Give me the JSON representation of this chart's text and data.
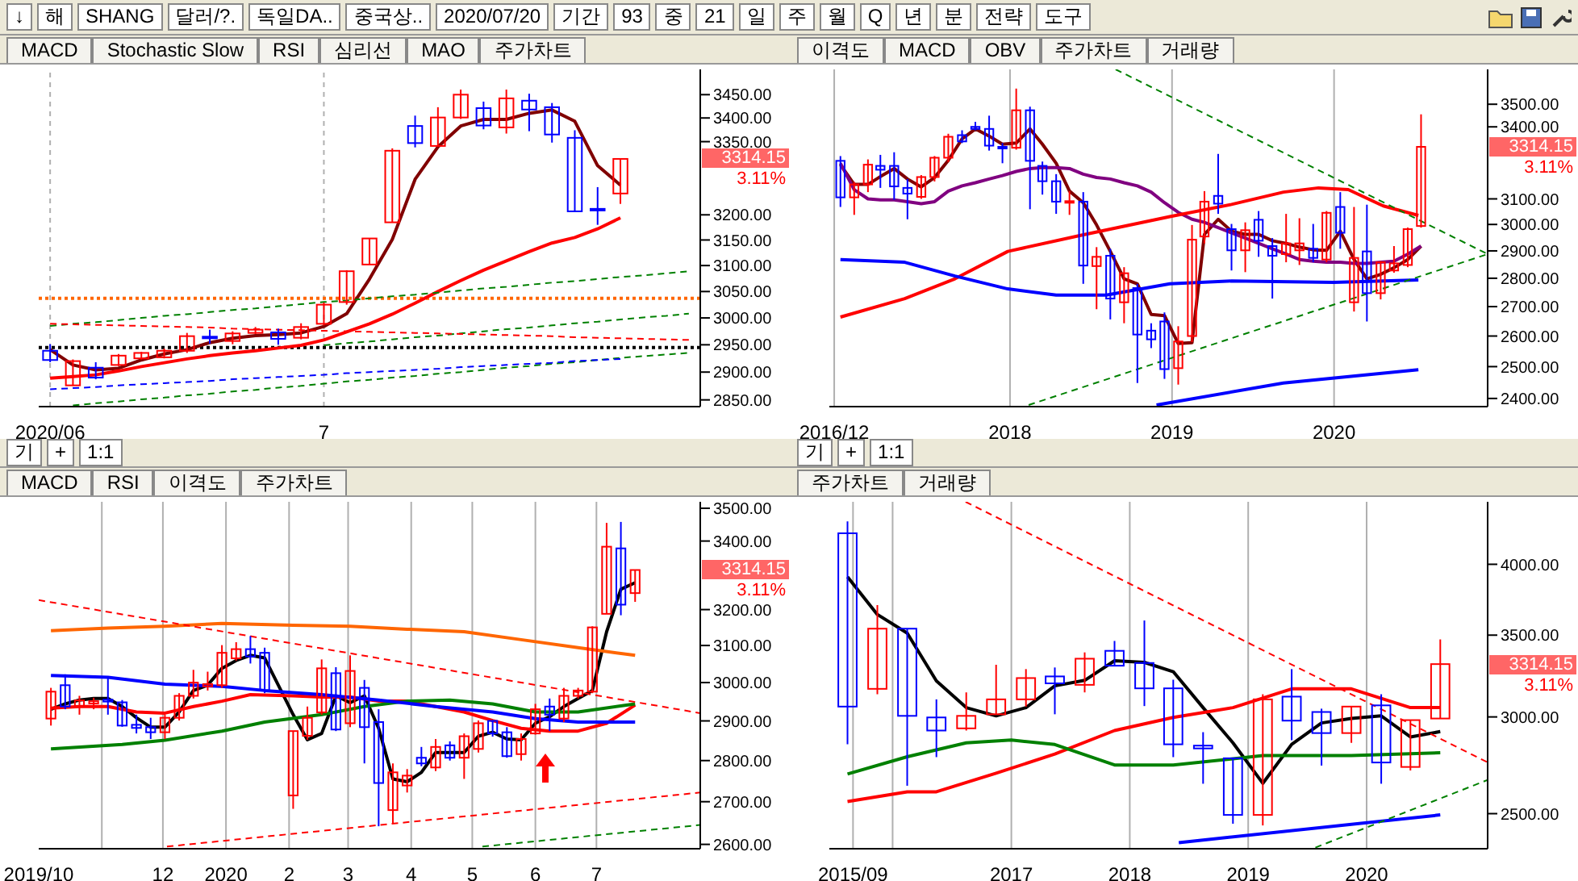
{
  "chart_data": [
    {
      "type": "other",
      "annotations": [
        "↓",
        "해",
        "SHANG",
        "달러/?.",
        "독일DA..",
        "중국상..",
        "2020/07/20",
        "기간",
        "93",
        "중",
        "21",
        "일",
        "주",
        "월",
        "Q",
        "년",
        "분",
        "전략",
        "도구"
      ]
    },
    {
      "type": "other",
      "annotations": [
        "MACD",
        "Stochastic Slow",
        "RSI",
        "심리선",
        "MAO",
        "주가차트"
      ]
    },
    {
      "type": "other",
      "annotations": [
        "이격도",
        "MACD",
        "OBV",
        "주가차트",
        "거래량"
      ]
    },
    {
      "type": "candlestick",
      "log": true,
      "grid": "x",
      "categories": [
        "2020/06",
        null,
        null,
        null,
        null,
        null,
        null,
        null,
        null,
        null,
        null,
        null,
        "7",
        null,
        null,
        null,
        null,
        null,
        null,
        null,
        null,
        null,
        null,
        null,
        null,
        null,
        null,
        null,
        null
      ],
      "ohlc": [
        [
          2939,
          2951,
          2918,
          2922
        ],
        [
          2876,
          2923,
          2875,
          2920
        ],
        [
          2908,
          2918,
          2887,
          2890
        ],
        [
          2913,
          2933,
          2911,
          2930
        ],
        [
          2925,
          2937,
          2923,
          2935
        ],
        [
          2927,
          2943,
          2925,
          2939
        ],
        [
          2939,
          2972,
          2935,
          2966
        ],
        [
          2965,
          2978,
          2952,
          2963
        ],
        [
          2957,
          2975,
          2951,
          2971
        ],
        [
          2972,
          2983,
          2970,
          2978
        ],
        [
          2973,
          2980,
          2950,
          2961
        ],
        [
          2963,
          2990,
          2960,
          2983
        ],
        [
          2989,
          3029,
          2986,
          3025
        ],
        [
          3030,
          3091,
          3025,
          3089
        ],
        [
          3102,
          3153,
          3102,
          3153
        ],
        [
          3185,
          3336,
          3185,
          3331
        ],
        [
          3383,
          3405,
          3338,
          3347
        ],
        [
          3341,
          3423,
          3341,
          3401
        ],
        [
          3401,
          3461,
          3398,
          3450
        ],
        [
          3421,
          3435,
          3376,
          3384
        ],
        [
          3380,
          3461,
          3367,
          3442
        ],
        [
          3437,
          3452,
          3372,
          3418
        ],
        [
          3423,
          3432,
          3348,
          3365
        ],
        [
          3358,
          3374,
          3207,
          3207
        ],
        [
          3212,
          3256,
          3180,
          3210
        ],
        [
          3243,
          3314,
          3222,
          3314
        ],
        null,
        null,
        null
      ],
      "colors": [
        "#0000ff",
        "#ff0000",
        "#0000ff",
        "#ff0000",
        "#ff0000",
        "#ff0000",
        "#ff0000",
        "#0000ff",
        "#ff0000",
        "#ff0000",
        "#0000ff",
        "#ff0000",
        "#ff0000",
        "#ff0000",
        "#ff0000",
        "#ff0000",
        "#0000ff",
        "#ff0000",
        "#ff0000",
        "#0000ff",
        "#ff0000",
        "#0000ff",
        "#0000ff",
        "#0000ff",
        "#0000ff",
        "#ff0000",
        null,
        null,
        null
      ],
      "ylim": [
        2838,
        3505
      ],
      "yticks": [
        {
          "value": 2850,
          "label": "2850.00"
        },
        {
          "value": 2900,
          "label": "2900.00"
        },
        {
          "value": 2950,
          "label": "2950.00"
        },
        {
          "value": 3000,
          "label": "3000.00"
        },
        {
          "value": 3050,
          "label": "3050.00"
        },
        {
          "value": 3100,
          "label": "3100.00"
        },
        {
          "value": 3150,
          "label": "3150.00"
        },
        {
          "value": 3200,
          "label": "3200.00"
        },
        {
          "value": 3350,
          "label": "3350.00"
        },
        {
          "value": 3400,
          "label": "3400.00"
        },
        {
          "value": 3450,
          "label": "3450.00"
        }
      ],
      "ref_lines": [
        {
          "axis": "y",
          "value": 3037,
          "color": "#ff6600",
          "line_style": "dotted"
        },
        {
          "axis": "y",
          "value": 2945,
          "color": "#000000",
          "line_style": "dotted"
        }
      ],
      "series": [
        {
          "type": "line",
          "color": "#800000",
          "values": [
            2941,
            2913,
            2904,
            2907,
            2922,
            2933,
            2941,
            2954,
            2962,
            2967,
            2969,
            2972,
            2984,
            3008,
            3074,
            3151,
            3272,
            3339,
            3383,
            3397,
            3397,
            3410,
            3417,
            3393,
            3300,
            3260,
            null,
            null,
            null
          ]
        },
        {
          "type": "line",
          "color": "#ff0000",
          "values": [
            2889,
            2892,
            2895,
            2902,
            2910,
            2917,
            2924,
            2930,
            2935,
            2939,
            2944,
            2949,
            2959,
            2974,
            2989,
            3007,
            3028,
            3050,
            3071,
            3091,
            3109,
            3127,
            3144,
            3155,
            3172,
            3194,
            null,
            null,
            null
          ]
        },
        {
          "type": "line",
          "color": "#008000",
          "line_style": "dashed",
          "values": [
            2985,
            2989,
            2992,
            2996,
            3000,
            3004,
            3007,
            3011,
            3015,
            3018,
            3022,
            3026,
            3030,
            3033,
            3037,
            3041,
            3044,
            3048,
            3052,
            3056,
            3059,
            3063,
            3067,
            3070,
            3074,
            3078,
            3081,
            3085,
            3089
          ]
        },
        {
          "type": "line",
          "color": "#008000",
          "line_style": "dashed",
          "values": [
            null,
            2840,
            2844,
            2847,
            2851,
            2854,
            2858,
            2861,
            2865,
            2868,
            2872,
            2875,
            2879,
            2883,
            2886,
            2890,
            2893,
            2897,
            2900,
            2904,
            2908,
            2911,
            2915,
            2918,
            2922,
            2926,
            2929,
            2932,
            2935
          ]
        },
        {
          "type": "line",
          "color": "#008000",
          "line_style": "dashed",
          "values": [
            null,
            null,
            null,
            null,
            null,
            null,
            null,
            null,
            null,
            null,
            null,
            null,
            2949,
            2953,
            2956,
            2960,
            2964,
            2967,
            2971,
            2975,
            2979,
            2982,
            2986,
            2990,
            2993,
            2997,
            3001,
            3004,
            3008
          ]
        },
        {
          "type": "line",
          "color": "#ff0000",
          "line_style": "dashed",
          "values": [
            2989,
            2988,
            2987,
            2986,
            2985,
            2984,
            2983,
            2982,
            2980,
            2979,
            2978,
            2977,
            2976,
            2975,
            2974,
            2973,
            2972,
            2971,
            2970,
            2969,
            2968,
            2967,
            2966,
            2964,
            2963,
            2962,
            2961,
            2960,
            2959
          ]
        },
        {
          "type": "line",
          "color": "#0000ff",
          "line_style": "dashed",
          "values": [
            2869,
            2871,
            2873,
            2876,
            2878,
            2880,
            2882,
            2884,
            2887,
            2889,
            2891,
            2893,
            2895,
            2898,
            2900,
            2902,
            2904,
            2906,
            2909,
            2911,
            2913,
            2915,
            2917,
            2920,
            2922,
            2924,
            null,
            null,
            null
          ]
        }
      ],
      "annotations": [
        "3314.15",
        "3.11%"
      ]
    },
    {
      "type": "candlestick",
      "log": true,
      "grid": "x",
      "x": [
        "2016-12-15",
        "2017-01-15",
        "2017-02-15",
        "2017-03-15",
        "2017-04-15",
        "2017-05-15",
        "2017-06-15",
        "2017-07-15",
        "2017-08-15",
        "2017-09-15",
        "2017-10-15",
        "2017-11-15",
        "2017-12-15",
        "2018-01-15",
        "2018-02-15",
        "2018-03-15",
        "2018-04-15",
        "2018-05-15",
        "2018-06-15",
        "2018-07-15",
        "2018-08-15",
        "2018-09-15",
        "2018-10-15",
        "2018-11-15",
        "2018-12-15",
        "2019-01-15",
        "2019-02-15",
        "2019-03-15",
        "2019-04-15",
        "2019-05-15",
        "2019-06-15",
        "2019-07-15",
        "2019-08-15",
        "2019-09-15",
        "2019-10-15",
        "2019-11-15",
        "2019-12-15",
        "2020-01-15",
        "2020-02-15",
        "2020-03-15",
        "2020-04-15",
        "2020-05-15",
        "2020-06-15",
        "2020-07-15"
      ],
      "ohlc": [
        [
          3255,
          3275,
          3068,
          3106
        ],
        [
          3106,
          3168,
          3037,
          3158
        ],
        [
          3158,
          3261,
          3127,
          3239
        ],
        [
          3234,
          3280,
          3144,
          3218
        ],
        [
          3234,
          3291,
          3096,
          3150
        ],
        [
          3144,
          3180,
          3020,
          3121
        ],
        [
          3108,
          3196,
          3100,
          3188
        ],
        [
          3188,
          3275,
          3170,
          3268
        ],
        [
          3268,
          3370,
          3250,
          3357
        ],
        [
          3364,
          3385,
          3330,
          3337
        ],
        [
          3400,
          3422,
          3385,
          3391
        ],
        [
          3391,
          3449,
          3298,
          3319
        ],
        [
          3314,
          3330,
          3245,
          3307
        ],
        [
          3310,
          3571,
          3302,
          3473
        ],
        [
          3473,
          3489,
          3059,
          3255
        ],
        [
          3234,
          3252,
          3117,
          3171
        ],
        [
          3171,
          3200,
          3041,
          3089
        ],
        [
          3087,
          3131,
          3037,
          3091
        ],
        [
          3089,
          3127,
          2780,
          2846
        ],
        [
          2844,
          2914,
          2691,
          2878
        ],
        [
          2882,
          2908,
          2656,
          2728
        ],
        [
          2715,
          2840,
          2643,
          2818
        ],
        [
          2765,
          2780,
          2448,
          2605
        ],
        [
          2618,
          2643,
          2560,
          2589
        ],
        [
          2649,
          2680,
          2461,
          2492
        ],
        [
          2495,
          2633,
          2443,
          2582
        ],
        [
          2600,
          2998,
          2580,
          2942
        ],
        [
          2954,
          3131,
          2928,
          3089
        ],
        [
          3112,
          3284,
          3041,
          3081
        ],
        [
          2982,
          3002,
          2828,
          2902
        ],
        [
          2902,
          3008,
          2822,
          2978
        ],
        [
          3018,
          3052,
          2878,
          2938
        ],
        [
          2918,
          2948,
          2728,
          2882
        ],
        [
          2888,
          3041,
          2858,
          2928
        ],
        [
          2902,
          3024,
          2848,
          2928
        ],
        [
          2908,
          3002,
          2858,
          2874
        ],
        [
          2868,
          3052,
          2858,
          3045
        ],
        [
          3068,
          3127,
          2908,
          2968
        ],
        [
          2715,
          3068,
          2683,
          2874
        ],
        [
          2898,
          3077,
          2649,
          2747
        ],
        [
          2747,
          2862,
          2725,
          2858
        ],
        [
          2828,
          2918,
          2820,
          2854
        ],
        [
          2848,
          2988,
          2840,
          2982
        ],
        [
          2994,
          3455,
          2988,
          3314
        ]
      ],
      "colors": [
        "#0000ff",
        "#ff0000",
        "#ff0000",
        "#0000ff",
        "#0000ff",
        "#0000ff",
        "#ff0000",
        "#ff0000",
        "#ff0000",
        "#0000ff",
        "#0000ff",
        "#0000ff",
        "#0000ff",
        "#ff0000",
        "#0000ff",
        "#0000ff",
        "#0000ff",
        "#ff0000",
        "#0000ff",
        "#ff0000",
        "#0000ff",
        "#ff0000",
        "#0000ff",
        "#0000ff",
        "#0000ff",
        "#ff0000",
        "#ff0000",
        "#ff0000",
        "#0000ff",
        "#0000ff",
        "#ff0000",
        "#0000ff",
        "#0000ff",
        "#ff0000",
        "#ff0000",
        "#0000ff",
        "#ff0000",
        "#0000ff",
        "#ff0000",
        "#0000ff",
        "#ff0000",
        "#ff0000",
        "#ff0000",
        "#ff0000"
      ],
      "xlim": [
        "2016-11-20",
        "2020-12-12"
      ],
      "xticks": [
        {
          "value": "2016-12-01",
          "label": "2016/12"
        },
        {
          "value": "2018-01-01",
          "label": "2018"
        },
        {
          "value": "2019-01-01",
          "label": "2019"
        },
        {
          "value": "2020-01-01",
          "label": "2020"
        }
      ],
      "ylim": [
        2375,
        3660
      ],
      "yticks": [
        {
          "value": 2400,
          "label": "2400.00"
        },
        {
          "value": 2500,
          "label": "2500.00"
        },
        {
          "value": 2600,
          "label": "2600.00"
        },
        {
          "value": 2700,
          "label": "2700.00"
        },
        {
          "value": 2800,
          "label": "2800.00"
        },
        {
          "value": 2900,
          "label": "2900.00"
        },
        {
          "value": 3000,
          "label": "3000.00"
        },
        {
          "value": 3100,
          "label": "3100.00"
        },
        {
          "value": 3400,
          "label": "3400.00"
        },
        {
          "value": 3500,
          "label": "3500.00"
        }
      ],
      "series": [
        {
          "type": "line",
          "color": "#800000",
          "values": [
            3239,
            3158,
            3158,
            3190,
            3223,
            3180,
            3148,
            3186,
            3257,
            3348,
            3391,
            3360,
            3325,
            3330,
            3391,
            3325,
            3245,
            3131,
            3085,
            2998,
            2898,
            2798,
            2780,
            2673,
            2669,
            2575,
            2578,
            2962,
            3020,
            2974,
            2962,
            2962,
            2938,
            2928,
            2914,
            2904,
            2902,
            2974,
            2868,
            2798,
            2814,
            2838,
            2868,
            2918
          ]
        },
        {
          "type": "line",
          "color": "#800080",
          "values": [
            3245,
            3137,
            3100,
            3096,
            3096,
            3089,
            3081,
            3089,
            3131,
            3152,
            3165,
            3180,
            3194,
            3211,
            3223,
            3227,
            3227,
            3223,
            3200,
            3186,
            3180,
            3165,
            3152,
            3127,
            3085,
            3047,
            3020,
            3008,
            2988,
            2968,
            2948,
            2928,
            2908,
            2888,
            2868,
            2862,
            2858,
            2858,
            2854,
            2854,
            2858,
            2862,
            2888,
            2918
          ]
        },
        {
          "type": "line",
          "color": "#ff0000",
          "x": [
            "2016-12-15",
            "2017-05-09",
            "2017-08-30",
            "2017-12-27",
            "2018-06-09",
            "2018-12-27",
            "2019-05-15",
            "2019-09-09",
            "2019-11-27",
            "2020-02-02",
            "2020-04-21",
            "2020-07-09"
          ],
          "values": [
            2664,
            2728,
            2798,
            2898,
            2958,
            3030,
            3078,
            3127,
            3144,
            3137,
            3072,
            3035
          ]
        },
        {
          "type": "line",
          "color": "#0000ff",
          "x": [
            "2016-12-15",
            "2017-05-09",
            "2017-08-30",
            "2017-12-27",
            "2018-04-15",
            "2018-08-06",
            "2018-12-27",
            "2019-05-15",
            "2019-12-31",
            "2020-07-09"
          ],
          "values": [
            2868,
            2858,
            2808,
            2762,
            2740,
            2740,
            2780,
            2790,
            2785,
            2794
          ]
        },
        {
          "type": "line",
          "color": "#0000ff",
          "x": [
            "2018-11-27",
            "2019-09-09",
            "2020-07-09"
          ],
          "values": [
            2380,
            2448,
            2490
          ]
        },
        {
          "type": "line",
          "color": "#008000",
          "line_style": "dashed",
          "x": [
            "2018-08-27",
            "2020-12-12"
          ],
          "values": [
            3660,
            2888
          ]
        },
        {
          "type": "line",
          "color": "#008000",
          "line_style": "dashed",
          "x": [
            "2018-02-12",
            "2020-12-12"
          ],
          "values": [
            2380,
            2888
          ]
        }
      ],
      "annotations": [
        "3314.15",
        "3.11%"
      ]
    },
    {
      "type": "other",
      "annotations": [
        "기",
        "+",
        "1:1"
      ]
    },
    {
      "type": "other",
      "annotations": [
        "기",
        "+",
        "1:1"
      ]
    },
    {
      "type": "other",
      "annotations": [
        "MACD",
        "RSI",
        "이격도",
        "주가차트"
      ]
    },
    {
      "type": "other",
      "annotations": [
        "주가차트",
        "거래량"
      ]
    },
    {
      "type": "candlestick",
      "log": true,
      "grid": "x",
      "x": [
        "2019-10-07",
        "2019-10-14",
        "2019-10-21",
        "2019-10-28",
        "2019-11-04",
        "2019-11-11",
        "2019-11-18",
        "2019-11-25",
        "2019-12-02",
        "2019-12-09",
        "2019-12-16",
        "2019-12-23",
        "2019-12-30",
        "2020-01-06",
        "2020-01-13",
        "2020-01-20",
        "2020-02-03",
        "2020-02-10",
        "2020-02-17",
        "2020-02-24",
        "2020-03-02",
        "2020-03-09",
        "2020-03-16",
        "2020-03-23",
        "2020-03-30",
        "2020-04-06",
        "2020-04-13",
        "2020-04-20",
        "2020-04-27",
        "2020-05-04",
        "2020-05-11",
        "2020-05-18",
        "2020-05-25",
        "2020-06-01",
        "2020-06-08",
        "2020-06-15",
        "2020-06-22",
        "2020-06-29",
        "2020-07-06",
        "2020-07-13",
        "2020-07-20"
      ],
      "ohlc": [
        [
          2906,
          2986,
          2888,
          2976
        ],
        [
          2993,
          3022,
          2930,
          2937
        ],
        [
          2937,
          2965,
          2916,
          2953
        ],
        [
          2945,
          2960,
          2930,
          2951
        ],
        [
          2955,
          3014,
          2916,
          2950
        ],
        [
          2948,
          2954,
          2885,
          2888
        ],
        [
          2890,
          2916,
          2868,
          2882
        ],
        [
          2884,
          2908,
          2854,
          2871
        ],
        [
          2871,
          2916,
          2854,
          2908
        ],
        [
          2908,
          2972,
          2901,
          2965
        ],
        [
          2965,
          3034,
          2958,
          3000
        ],
        [
          2990,
          3029,
          2979,
          2996
        ],
        [
          2993,
          3101,
          2986,
          3080
        ],
        [
          3065,
          3109,
          3059,
          3090
        ],
        [
          3090,
          3126,
          3051,
          3070
        ],
        [
          3080,
          3094,
          2972,
          2979
        ],
        [
          2715,
          2874,
          2683,
          2874
        ],
        [
          2862,
          2937,
          2852,
          2908
        ],
        [
          2922,
          3062,
          2916,
          3038
        ],
        [
          3025,
          3041,
          2874,
          2878
        ],
        [
          2894,
          3073,
          2884,
          3031
        ],
        [
          2986,
          3007,
          2793,
          2884
        ],
        [
          2897,
          2930,
          2642,
          2745
        ],
        [
          2680,
          2793,
          2648,
          2771
        ],
        [
          2739,
          2779,
          2722,
          2763
        ],
        [
          2807,
          2834,
          2786,
          2793
        ],
        [
          2783,
          2854,
          2774,
          2834
        ],
        [
          2838,
          2848,
          2800,
          2807
        ],
        [
          2807,
          2868,
          2755,
          2861
        ],
        [
          2829,
          2901,
          2820,
          2894
        ],
        [
          2900,
          2901,
          2860,
          2868
        ],
        [
          2871,
          2884,
          2807,
          2811
        ],
        [
          2816,
          2868,
          2800,
          2854
        ],
        [
          2868,
          2944,
          2865,
          2930
        ],
        [
          2937,
          2958,
          2874,
          2916
        ],
        [
          2906,
          2986,
          2897,
          2965
        ],
        [
          2965,
          2986,
          2958,
          2979
        ],
        [
          2976,
          3153,
          2972,
          3150
        ],
        [
          3188,
          3455,
          3188,
          3383
        ],
        [
          3378,
          3458,
          3184,
          3214
        ],
        [
          3247,
          3314,
          3222,
          3314
        ]
      ],
      "colors": [
        "#ff0000",
        "#0000ff",
        "#ff0000",
        "#ff0000",
        "#0000ff",
        "#0000ff",
        "#0000ff",
        "#0000ff",
        "#ff0000",
        "#ff0000",
        "#ff0000",
        "#ff0000",
        "#ff0000",
        "#ff0000",
        "#0000ff",
        "#0000ff",
        "#ff0000",
        "#ff0000",
        "#ff0000",
        "#0000ff",
        "#ff0000",
        "#0000ff",
        "#0000ff",
        "#ff0000",
        "#ff0000",
        "#0000ff",
        "#ff0000",
        "#0000ff",
        "#ff0000",
        "#ff0000",
        "#0000ff",
        "#0000ff",
        "#ff0000",
        "#ff0000",
        "#0000ff",
        "#ff0000",
        "#ff0000",
        "#ff0000",
        "#ff0000",
        "#0000ff",
        "#ff0000"
      ],
      "xlim": [
        "2019-10-01",
        "2020-08-21"
      ],
      "xticks": [
        {
          "value": "2019-10-01",
          "label": "2019/10"
        },
        {
          "value": "2019-11-01",
          "label": null
        },
        {
          "value": "2019-12-01",
          "label": "12"
        },
        {
          "value": "2020-01-01",
          "label": "2020"
        },
        {
          "value": "2020-02-01",
          "label": "2"
        },
        {
          "value": "2020-03-01",
          "label": "3"
        },
        {
          "value": "2020-04-01",
          "label": "4"
        },
        {
          "value": "2020-05-01",
          "label": "5"
        },
        {
          "value": "2020-06-01",
          "label": "6"
        },
        {
          "value": "2020-07-01",
          "label": "7"
        }
      ],
      "ylim": [
        2590,
        3520
      ],
      "yticks": [
        {
          "value": 2600,
          "label": "2600.00"
        },
        {
          "value": 2700,
          "label": "2700.00"
        },
        {
          "value": 2800,
          "label": "2800.00"
        },
        {
          "value": 2900,
          "label": "2900.00"
        },
        {
          "value": 3000,
          "label": "3000.00"
        },
        {
          "value": 3100,
          "label": "3100.00"
        },
        {
          "value": 3200,
          "label": "3200.00"
        },
        {
          "value": 3400,
          "label": "3400.00"
        },
        {
          "value": 3500,
          "label": "3500.00"
        }
      ],
      "series": [
        {
          "type": "line",
          "color": "#000000",
          "values": [
            2930,
            2944,
            2954,
            2958,
            2958,
            2937,
            2908,
            2884,
            2884,
            2923,
            2979,
            2993,
            3038,
            3059,
            3073,
            3066,
            2916,
            2852,
            2868,
            2965,
            2947,
            2965,
            2881,
            2755,
            2748,
            2771,
            2820,
            2820,
            2820,
            2861,
            2871,
            2854,
            2852,
            2894,
            2911,
            2937,
            2958,
            2979,
            3138,
            3258,
            3277
          ]
        },
        {
          "type": "line",
          "color": "#ff0000",
          "x": [
            "2019-10-07",
            "2019-10-21",
            "2019-11-04",
            "2019-11-18",
            "2019-12-02",
            "2019-12-16",
            "2019-12-30",
            "2020-01-13",
            "2020-02-03",
            "2020-02-17",
            "2020-03-02",
            "2020-03-16",
            "2020-03-30",
            "2020-04-13",
            "2020-04-27",
            "2020-05-11",
            "2020-05-25",
            "2020-06-08",
            "2020-06-22",
            "2020-07-06",
            "2020-07-20"
          ],
          "values": [
            2933,
            2937,
            2937,
            2923,
            2920,
            2937,
            2951,
            2968,
            2965,
            2962,
            2962,
            2951,
            2951,
            2937,
            2923,
            2901,
            2881,
            2874,
            2874,
            2894,
            2941
          ]
        },
        {
          "type": "line",
          "color": "#008000",
          "x": [
            "2019-10-07",
            "2019-11-11",
            "2019-12-02",
            "2019-12-30",
            "2020-01-20",
            "2020-02-17",
            "2020-03-09",
            "2020-03-30",
            "2020-04-20",
            "2020-05-11",
            "2020-06-01",
            "2020-06-22",
            "2020-07-20"
          ],
          "values": [
            2829,
            2840,
            2851,
            2874,
            2897,
            2916,
            2937,
            2951,
            2954,
            2944,
            2923,
            2923,
            2944
          ]
        },
        {
          "type": "line",
          "color": "#0000ff",
          "x": [
            "2019-10-07",
            "2019-11-04",
            "2019-12-02",
            "2019-12-30",
            "2020-01-20",
            "2020-02-17",
            "2020-03-16",
            "2020-04-13",
            "2020-05-11",
            "2020-06-01",
            "2020-06-22",
            "2020-07-20"
          ],
          "values": [
            3019,
            3014,
            2996,
            2990,
            2979,
            2968,
            2954,
            2937,
            2923,
            2906,
            2897,
            2897
          ]
        },
        {
          "type": "line",
          "color": "#ff6600",
          "x": [
            "2019-10-07",
            "2019-11-04",
            "2019-12-02",
            "2019-12-30",
            "2020-02-03",
            "2020-03-02",
            "2020-03-30",
            "2020-04-27",
            "2020-05-25",
            "2020-06-22",
            "2020-07-20"
          ],
          "values": [
            3141,
            3148,
            3153,
            3161,
            3156,
            3153,
            3145,
            3138,
            3116,
            3094,
            3073
          ]
        },
        {
          "type": "line",
          "color": "#ff0000",
          "line_style": "dashed",
          "x": [
            "2019-10-01",
            "2020-08-21"
          ],
          "values": [
            3227,
            2920
          ]
        },
        {
          "type": "line",
          "color": "#ff0000",
          "line_style": "dashed",
          "x": [
            "2019-12-03",
            "2020-08-21"
          ],
          "values": [
            2595,
            2722
          ]
        },
        {
          "type": "line",
          "color": "#008000",
          "line_style": "dashed",
          "x": [
            "2020-05-06",
            "2020-08-21"
          ],
          "values": [
            2595,
            2645
          ]
        }
      ],
      "annotations": [
        "3314.15",
        "3.11%"
      ]
    },
    {
      "type": "candlestick",
      "log": true,
      "grid": "x",
      "x": [
        "2015-08-15",
        "2015-11-15",
        "2016-02-15",
        "2016-05-15",
        "2016-08-15",
        "2016-11-15",
        "2017-02-15",
        "2017-05-15",
        "2017-08-15",
        "2017-11-15",
        "2018-02-15",
        "2018-05-15",
        "2018-08-15",
        "2018-11-15",
        "2019-02-15",
        "2019-05-15",
        "2019-08-15",
        "2019-11-15",
        "2020-02-15",
        "2020-05-15",
        "2020-08-15"
      ],
      "ohlc": [
        [
          4241,
          4337,
          2849,
          3059
        ],
        [
          3163,
          3704,
          3131,
          3543
        ],
        [
          3543,
          3543,
          2635,
          3006
        ],
        [
          2997,
          3101,
          2781,
          2924
        ],
        [
          2936,
          3142,
          2924,
          3006
        ],
        [
          3015,
          3310,
          3015,
          3101
        ],
        [
          3101,
          3283,
          3059,
          3228
        ],
        [
          3238,
          3293,
          3015,
          3196
        ],
        [
          3187,
          3388,
          3142,
          3348
        ],
        [
          3398,
          3462,
          3304,
          3304
        ],
        [
          3321,
          3598,
          3062,
          3166
        ],
        [
          3166,
          3218,
          2781,
          2849
        ],
        [
          2842,
          2915,
          2645,
          2827
        ],
        [
          2775,
          2775,
          2453,
          2494
        ],
        [
          2494,
          3131,
          2445,
          3101
        ],
        [
          3117,
          3283,
          2871,
          2979
        ],
        [
          3028,
          3047,
          2737,
          2910
        ],
        [
          2910,
          3059,
          2857,
          3059
        ],
        [
          3066,
          3131,
          2645,
          2753
        ],
        [
          2730,
          2982,
          2712,
          2982
        ],
        [
          2991,
          3472,
          2991,
          3314
        ]
      ],
      "colors": [
        "#0000ff",
        "#ff0000",
        "#0000ff",
        "#0000ff",
        "#ff0000",
        "#ff0000",
        "#ff0000",
        "#0000ff",
        "#ff0000",
        "#0000ff",
        "#0000ff",
        "#0000ff",
        "#0000ff",
        "#0000ff",
        "#ff0000",
        "#0000ff",
        "#0000ff",
        "#ff0000",
        "#0000ff",
        "#ff0000",
        "#ff0000"
      ],
      "xlim": [
        "2015-06-20",
        "2021-01-08"
      ],
      "xticks": [
        {
          "value": "2015-09-01",
          "label": "2015/09"
        },
        {
          "value": "2016-01-01",
          "label": null
        },
        {
          "value": "2017-01-01",
          "label": "2017"
        },
        {
          "value": "2018-01-01",
          "label": "2018"
        },
        {
          "value": "2019-01-01",
          "label": "2019"
        },
        {
          "value": "2020-01-01",
          "label": "2020"
        }
      ],
      "ylim": [
        2340,
        4500
      ],
      "yticks": [
        {
          "value": 2500,
          "label": "2500.00"
        },
        {
          "value": 3000,
          "label": "3000.00"
        },
        {
          "value": 3500,
          "label": "3500.00"
        },
        {
          "value": 4000,
          "label": "4000.00"
        }
      ],
      "series": [
        {
          "type": "line",
          "color": "#000000",
          "values": [
            3907,
            3639,
            3513,
            3211,
            3053,
            3006,
            3053,
            3181,
            3214,
            3335,
            3325,
            3267,
            3053,
            2857,
            2647,
            2849,
            2966,
            2991,
            3006,
            2889,
            2918
          ]
        },
        {
          "type": "line",
          "color": "#ff0000",
          "x": [
            "2015-08-15",
            "2016-02-15",
            "2016-05-15",
            "2016-11-15",
            "2017-05-15",
            "2017-11-15",
            "2018-05-15",
            "2018-11-15",
            "2019-05-15",
            "2019-11-15",
            "2020-05-15",
            "2020-08-15"
          ],
          "values": [
            2558,
            2605,
            2605,
            2698,
            2797,
            2924,
            2997,
            3053,
            3163,
            3163,
            3053,
            3053
          ]
        },
        {
          "type": "line",
          "color": "#008000",
          "x": [
            "2015-08-15",
            "2016-02-15",
            "2016-08-15",
            "2017-01-01",
            "2017-05-15",
            "2017-11-15",
            "2018-05-15",
            "2019-02-15",
            "2019-11-15",
            "2020-08-15"
          ],
          "values": [
            2694,
            2783,
            2857,
            2872,
            2848,
            2740,
            2740,
            2789,
            2789,
            2804
          ]
        },
        {
          "type": "line",
          "color": "#0000ff",
          "x": [
            "2018-06-01",
            "2020-08-15"
          ],
          "values": [
            2367,
            2494
          ]
        },
        {
          "type": "line",
          "color": "#ff0000",
          "line_style": "dashed",
          "x": [
            "2016-08-13",
            "2021-01-08"
          ],
          "values": [
            4500,
            2754
          ]
        },
        {
          "type": "line",
          "color": "#008000",
          "line_style": "dashed",
          "x": [
            "2019-07-27",
            "2021-01-08"
          ],
          "values": [
            2345,
            2664
          ]
        }
      ],
      "annotations": [
        "3314.15",
        "3.11%"
      ]
    }
  ]
}
